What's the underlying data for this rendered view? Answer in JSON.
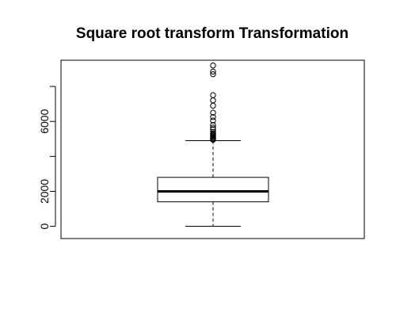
{
  "chart_data": {
    "type": "boxplot",
    "title": "Square root transform Transformation",
    "xlabel": "",
    "ylabel": "",
    "ylim": [
      -700,
      9500
    ],
    "y_ticks": [
      0,
      2000,
      4000,
      6000,
      8000
    ],
    "y_tick_labels": [
      "0",
      "2000",
      "",
      "6000",
      ""
    ],
    "grid": false,
    "legend": "none",
    "box": {
      "whisker_low": 0,
      "q1": 1400,
      "median": 2000,
      "q3": 2800,
      "whisker_high": 4900
    },
    "outliers": [
      4950,
      5000,
      5050,
      5100,
      5150,
      5200,
      5250,
      5300,
      5400,
      5550,
      5650,
      5800,
      6050,
      6250,
      6500,
      6900,
      7200,
      7500,
      8700,
      8850,
      9200
    ]
  }
}
